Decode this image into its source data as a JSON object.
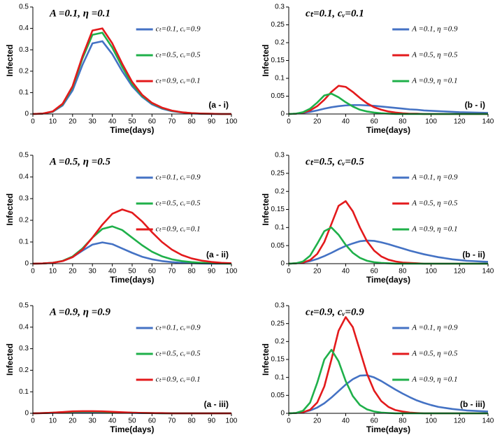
{
  "chart_data": [
    {
      "type": "line",
      "title": "A =0.1, η =0.1",
      "panel_label": "(a - i)",
      "x_label": "Time(days)",
      "y_label": "Infected",
      "legend": "upper right",
      "xlim": [
        0,
        100
      ],
      "ylim": [
        0,
        0.5
      ],
      "xticks": [
        0,
        10,
        20,
        30,
        40,
        50,
        60,
        70,
        80,
        90,
        100
      ],
      "yticks": [
        0,
        0.1,
        0.2,
        0.3,
        0.4,
        0.5
      ],
      "x": [
        0,
        5,
        10,
        15,
        20,
        25,
        30,
        35,
        40,
        45,
        50,
        55,
        60,
        65,
        70,
        75,
        80,
        85,
        90,
        95,
        100
      ],
      "series": [
        {
          "name": "cₜ=0.1, cᵥ=0.9",
          "color": "#4472c4",
          "values": [
            0,
            0.002,
            0.01,
            0.04,
            0.11,
            0.23,
            0.33,
            0.34,
            0.28,
            0.2,
            0.13,
            0.08,
            0.045,
            0.025,
            0.013,
            0.007,
            0.003,
            0.001,
            0,
            0,
            0
          ]
        },
        {
          "name": "cₜ=0.5, cᵥ=0.5",
          "color": "#1fb04a",
          "values": [
            0,
            0.002,
            0.011,
            0.045,
            0.125,
            0.26,
            0.37,
            0.38,
            0.31,
            0.22,
            0.14,
            0.085,
            0.05,
            0.028,
            0.015,
            0.008,
            0.004,
            0.002,
            0.001,
            0,
            0
          ]
        },
        {
          "name": "cₜ=0.9, cᵥ=0.1",
          "color": "#e31a1c",
          "values": [
            0,
            0.002,
            0.012,
            0.048,
            0.13,
            0.27,
            0.39,
            0.4,
            0.33,
            0.235,
            0.15,
            0.09,
            0.052,
            0.03,
            0.016,
            0.008,
            0.004,
            0.002,
            0.001,
            0,
            0
          ]
        }
      ]
    },
    {
      "type": "line",
      "title": "cₜ=0.1, cᵥ=0.1",
      "panel_label": "(b - i)",
      "x_label": "Time(days)",
      "y_label": "Infected",
      "legend": "upper right",
      "xlim": [
        0,
        140
      ],
      "ylim": [
        0,
        0.3
      ],
      "xticks": [
        0,
        20,
        40,
        60,
        80,
        100,
        120,
        140
      ],
      "yticks": [
        0,
        0.05,
        0.1,
        0.15,
        0.2,
        0.25,
        0.3
      ],
      "x": [
        0,
        5,
        10,
        15,
        20,
        25,
        30,
        35,
        40,
        45,
        50,
        55,
        60,
        65,
        70,
        75,
        80,
        85,
        90,
        95,
        100,
        105,
        110,
        115,
        120,
        125,
        130,
        135,
        140
      ],
      "series": [
        {
          "name": "A =0.1, η =0.9",
          "color": "#4472c4",
          "values": [
            0,
            0.001,
            0.003,
            0.006,
            0.01,
            0.015,
            0.019,
            0.022,
            0.024,
            0.025,
            0.025,
            0.024,
            0.023,
            0.021,
            0.019,
            0.017,
            0.015,
            0.013,
            0.012,
            0.01,
            0.009,
            0.008,
            0.007,
            0.006,
            0.005,
            0.0045,
            0.004,
            0.0035,
            0.003
          ]
        },
        {
          "name": "A =0.5, η =0.5",
          "color": "#e31a1c",
          "values": [
            0,
            0.001,
            0.004,
            0.01,
            0.022,
            0.04,
            0.062,
            0.079,
            0.076,
            0.062,
            0.045,
            0.03,
            0.019,
            0.012,
            0.007,
            0.004,
            0.002,
            0.001,
            0.001,
            0,
            0,
            0,
            0,
            0,
            0,
            0,
            0,
            0,
            0
          ]
        },
        {
          "name": "A =0.9, η =0.1",
          "color": "#1fb04a",
          "values": [
            0,
            0.001,
            0.005,
            0.015,
            0.032,
            0.052,
            0.057,
            0.047,
            0.033,
            0.021,
            0.012,
            0.007,
            0.004,
            0.002,
            0.001,
            0,
            0,
            0,
            0,
            0,
            0,
            0,
            0,
            0,
            0,
            0,
            0,
            0,
            0
          ]
        }
      ]
    },
    {
      "type": "line",
      "title": "A =0.5, η =0.5",
      "panel_label": "(a - ii)",
      "x_label": "Time(days)",
      "y_label": "Infected",
      "legend": "upper right",
      "xlim": [
        0,
        100
      ],
      "ylim": [
        0,
        0.5
      ],
      "xticks": [
        0,
        10,
        20,
        30,
        40,
        50,
        60,
        70,
        80,
        90,
        100
      ],
      "yticks": [
        0,
        0.1,
        0.2,
        0.3,
        0.4,
        0.5
      ],
      "x": [
        0,
        5,
        10,
        15,
        20,
        25,
        30,
        35,
        40,
        45,
        50,
        55,
        60,
        65,
        70,
        75,
        80,
        85,
        90,
        95,
        100
      ],
      "series": [
        {
          "name": "cₜ=0.1, cᵥ=0.9",
          "color": "#4472c4",
          "values": [
            0,
            0.001,
            0.004,
            0.012,
            0.03,
            0.06,
            0.088,
            0.098,
            0.09,
            0.07,
            0.05,
            0.032,
            0.02,
            0.012,
            0.007,
            0.004,
            0.002,
            0.001,
            0,
            0,
            0
          ]
        },
        {
          "name": "cₜ=0.5, cᵥ=0.5",
          "color": "#1fb04a",
          "values": [
            0,
            0.001,
            0.004,
            0.013,
            0.033,
            0.07,
            0.12,
            0.16,
            0.172,
            0.155,
            0.12,
            0.085,
            0.055,
            0.034,
            0.02,
            0.012,
            0.007,
            0.004,
            0.002,
            0.001,
            0
          ]
        },
        {
          "name": "cₜ=0.9, cᵥ=0.1",
          "color": "#e31a1c",
          "values": [
            0,
            0.001,
            0.004,
            0.012,
            0.03,
            0.065,
            0.12,
            0.18,
            0.23,
            0.25,
            0.235,
            0.195,
            0.145,
            0.1,
            0.065,
            0.04,
            0.024,
            0.014,
            0.008,
            0.004,
            0.002
          ]
        }
      ]
    },
    {
      "type": "line",
      "title": "cₜ=0.5, cᵥ=0.5",
      "panel_label": "(b - ii)",
      "x_label": "Time(days)",
      "y_label": "Infected",
      "legend": "upper right",
      "xlim": [
        0,
        140
      ],
      "ylim": [
        0,
        0.3
      ],
      "xticks": [
        0,
        20,
        40,
        60,
        80,
        100,
        120,
        140
      ],
      "yticks": [
        0,
        0.05,
        0.1,
        0.15,
        0.2,
        0.25,
        0.3
      ],
      "x": [
        0,
        5,
        10,
        15,
        20,
        25,
        30,
        35,
        40,
        45,
        50,
        55,
        60,
        65,
        70,
        75,
        80,
        85,
        90,
        95,
        100,
        105,
        110,
        115,
        120,
        125,
        130,
        135,
        140
      ],
      "series": [
        {
          "name": "A =0.1, η =0.9",
          "color": "#4472c4",
          "values": [
            0,
            0.001,
            0.003,
            0.007,
            0.013,
            0.021,
            0.03,
            0.04,
            0.049,
            0.056,
            0.062,
            0.064,
            0.063,
            0.059,
            0.054,
            0.048,
            0.042,
            0.036,
            0.031,
            0.026,
            0.022,
            0.018,
            0.015,
            0.012,
            0.01,
            0.008,
            0.007,
            0.006,
            0.005
          ]
        },
        {
          "name": "A =0.5, η =0.5",
          "color": "#e31a1c",
          "values": [
            0,
            0.001,
            0.003,
            0.01,
            0.027,
            0.06,
            0.11,
            0.16,
            0.173,
            0.145,
            0.1,
            0.062,
            0.036,
            0.02,
            0.011,
            0.006,
            0.003,
            0.002,
            0.001,
            0,
            0,
            0,
            0,
            0,
            0,
            0,
            0,
            0,
            0
          ]
        },
        {
          "name": "A =0.9, η =0.1",
          "color": "#1fb04a",
          "values": [
            0,
            0.001,
            0.006,
            0.022,
            0.055,
            0.09,
            0.1,
            0.08,
            0.052,
            0.03,
            0.016,
            0.008,
            0.004,
            0.002,
            0.001,
            0,
            0,
            0,
            0,
            0,
            0,
            0,
            0,
            0,
            0,
            0,
            0,
            0,
            0
          ]
        }
      ]
    },
    {
      "type": "line",
      "title": "A =0.9, η =0.9",
      "panel_label": "(a - iii)",
      "x_label": "Time(days)",
      "y_label": "Infected",
      "legend": "upper right",
      "xlim": [
        0,
        100
      ],
      "ylim": [
        0,
        0.5
      ],
      "xticks": [
        0,
        10,
        20,
        30,
        40,
        50,
        60,
        70,
        80,
        90,
        100
      ],
      "yticks": [
        0,
        0.1,
        0.2,
        0.3,
        0.4,
        0.5
      ],
      "x": [
        0,
        5,
        10,
        15,
        20,
        25,
        30,
        35,
        40,
        45,
        50,
        55,
        60,
        65,
        70,
        75,
        80,
        85,
        90,
        95,
        100
      ],
      "series": [
        {
          "name": "cₜ=0.1, cᵥ=0.9",
          "color": "#4472c4",
          "values": [
            0,
            0.001,
            0.002,
            0.004,
            0.005,
            0.006,
            0.006,
            0.005,
            0.004,
            0.003,
            0.002,
            0.001,
            0.001,
            0,
            0,
            0,
            0,
            0,
            0,
            0,
            0
          ]
        },
        {
          "name": "cₜ=0.5, cᵥ=0.5",
          "color": "#1fb04a",
          "values": [
            0,
            0.001,
            0.003,
            0.005,
            0.007,
            0.008,
            0.008,
            0.007,
            0.005,
            0.004,
            0.003,
            0.002,
            0.001,
            0,
            0,
            0,
            0,
            0,
            0,
            0,
            0
          ]
        },
        {
          "name": "cₜ=0.9, cᵥ=0.1",
          "color": "#e31a1c",
          "values": [
            0,
            0.001,
            0.003,
            0.006,
            0.009,
            0.01,
            0.01,
            0.009,
            0.007,
            0.005,
            0.003,
            0.002,
            0.001,
            0.001,
            0,
            0,
            0,
            0,
            0,
            0,
            0
          ]
        }
      ]
    },
    {
      "type": "line",
      "title": "cₜ=0.9, cᵥ=0.9",
      "panel_label": "(b - iii)",
      "x_label": "Time(days)",
      "y_label": "Infected",
      "legend": "upper right",
      "xlim": [
        0,
        140
      ],
      "ylim": [
        0,
        0.3
      ],
      "xticks": [
        0,
        20,
        40,
        60,
        80,
        100,
        120,
        140
      ],
      "yticks": [
        0,
        0.05,
        0.1,
        0.15,
        0.2,
        0.25,
        0.3
      ],
      "x": [
        0,
        5,
        10,
        15,
        20,
        25,
        30,
        35,
        40,
        45,
        50,
        55,
        60,
        65,
        70,
        75,
        80,
        85,
        90,
        95,
        100,
        105,
        110,
        115,
        120,
        125,
        130,
        135,
        140
      ],
      "series": [
        {
          "name": "A =0.1, η =0.9",
          "color": "#4472c4",
          "values": [
            0,
            0.001,
            0.003,
            0.008,
            0.016,
            0.028,
            0.044,
            0.062,
            0.08,
            0.095,
            0.105,
            0.106,
            0.1,
            0.09,
            0.078,
            0.066,
            0.055,
            0.045,
            0.036,
            0.029,
            0.023,
            0.018,
            0.015,
            0.012,
            0.01,
            0.008,
            0.007,
            0.006,
            0.005
          ]
        },
        {
          "name": "A =0.5, η =0.5",
          "color": "#e31a1c",
          "values": [
            0,
            0.001,
            0.003,
            0.01,
            0.03,
            0.075,
            0.15,
            0.23,
            0.268,
            0.24,
            0.175,
            0.11,
            0.063,
            0.034,
            0.018,
            0.009,
            0.005,
            0.002,
            0.001,
            0,
            0,
            0,
            0,
            0,
            0,
            0,
            0,
            0,
            0
          ]
        },
        {
          "name": "A =0.9, η =0.1",
          "color": "#1fb04a",
          "values": [
            0,
            0.001,
            0.007,
            0.03,
            0.085,
            0.15,
            0.177,
            0.145,
            0.09,
            0.048,
            0.023,
            0.011,
            0.005,
            0.002,
            0.001,
            0,
            0,
            0,
            0,
            0,
            0,
            0,
            0,
            0,
            0,
            0,
            0,
            0,
            0
          ]
        }
      ]
    }
  ]
}
